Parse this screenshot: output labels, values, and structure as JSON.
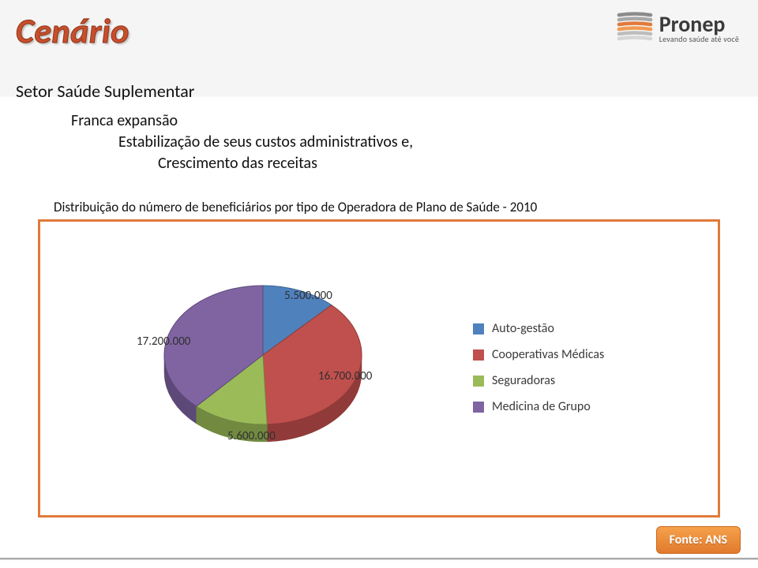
{
  "header": {
    "title": "Cenário",
    "title_color": "#c84f2c",
    "title_stroke": "#8f3418",
    "title_fontsize": 44
  },
  "logo": {
    "brand": "Pronep",
    "tagline": "Levando saúde até você",
    "mark_band_colors": [
      "#8b8b8b",
      "#a8a8a8",
      "#e07a3a",
      "#f29a52",
      "#bdbdbd",
      "#d6d6d6"
    ]
  },
  "text": {
    "subtitle": "Setor Saúde Suplementar",
    "line1": "Franca expansão",
    "line2": "Estabilização de seus custos administrativos e,",
    "line3": "Crescimento das receitas",
    "fontsize": 20
  },
  "chart": {
    "title": "Distribuição do número de beneficiários por tipo de Operadora de Plano de Saúde - 2010",
    "title_fontsize": 17,
    "type": "pie",
    "border_color": "#e07a3a",
    "background_color": "#ffffff",
    "label_color": "#303030",
    "label_fontsize": 15,
    "rotation_start_deg": 270,
    "tilt": "3d-oblique",
    "slices": [
      {
        "name": "Auto-gestão",
        "value": 5500000,
        "label": "5.500.000",
        "color": "#4f81bd",
        "stroke": "#3a628f"
      },
      {
        "name": "Cooperativas Médicas",
        "value": 16700000,
        "label": "16.700.000",
        "color": "#c0504d",
        "stroke": "#903b39"
      },
      {
        "name": "Seguradoras",
        "value": 5600000,
        "label": "5.600.000",
        "color": "#9bbb59",
        "stroke": "#718a40"
      },
      {
        "name": "Medicina de Grupo",
        "value": 17200000,
        "label": "17.200.000",
        "color": "#8064a2",
        "stroke": "#5d4977"
      }
    ],
    "legend": {
      "items": [
        {
          "label": "Auto-gestão",
          "color": "#4f81bd"
        },
        {
          "label": "Cooperativas Médicas",
          "color": "#c0504d"
        },
        {
          "label": "Seguradoras",
          "color": "#9bbb59"
        },
        {
          "label": "Medicina de Grupo",
          "color": "#8064a2"
        }
      ],
      "fontsize": 16
    }
  },
  "source": {
    "label": "Fonte: ANS",
    "bg_from": "#f6a14b",
    "bg_to": "#e07a2c",
    "text_color": "#ffffff"
  }
}
